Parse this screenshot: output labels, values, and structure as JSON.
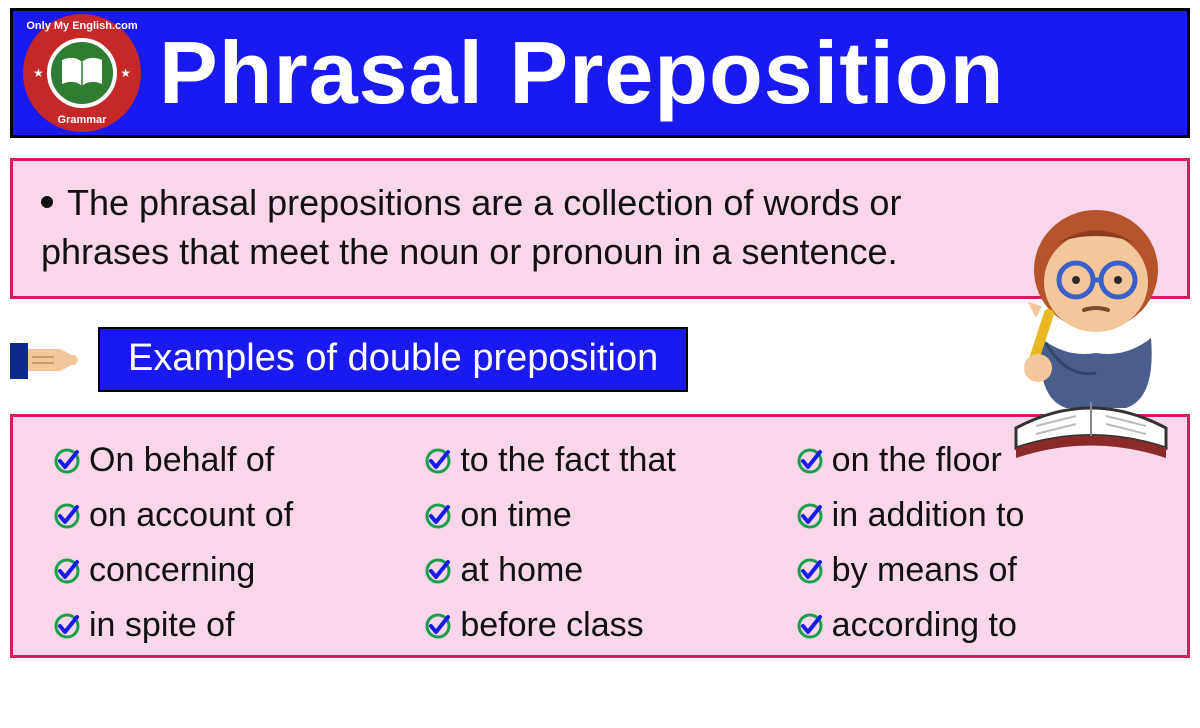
{
  "header": {
    "title": "Phrasal Preposition",
    "badge_top": "Only My English.com",
    "badge_bottom": "Grammar",
    "background_color": "#1a1af0",
    "border_color": "#000000",
    "title_color": "#ffffff",
    "title_fontsize": 88,
    "badge_outer_color": "#c62828",
    "badge_inner_color": "#2e7d32"
  },
  "definition": {
    "text": "The phrasal prepositions are a collection of words or phrases that meet the noun or pronoun in a sentence.",
    "background_color": "#f9d6ea",
    "border_color": "#d81b60",
    "text_color": "#111111",
    "fontsize": 36
  },
  "subheader": {
    "label": "Examples of double preposition",
    "background_color": "#1a1af0",
    "text_color": "#ffffff",
    "fontsize": 38
  },
  "examples": {
    "background_color": "#f9d6ea",
    "border_color": "#d81b60",
    "text_color": "#111111",
    "fontsize": 34,
    "check_circle_color": "#1a9e4b",
    "check_tick_color": "#1a1af0",
    "columns": 3,
    "items": [
      "On behalf of",
      "to the fact that",
      "on the floor",
      "on account of",
      "on time",
      "in addition to",
      "concerning",
      "at home",
      "by means of",
      "in spite of",
      "before class",
      "according to"
    ]
  },
  "illustration": {
    "hair_color": "#b5532a",
    "skin_color": "#f4c79a",
    "glasses_color": "#3a5fc8",
    "hoodie_color": "#4a5e8e",
    "book_page_color": "#ffffff",
    "book_cover_color": "#8a2a2a",
    "pencil_color": "#e8b923"
  },
  "hand_icon": {
    "cuff_color": "#0d2a8a",
    "skin_color": "#f4c79a"
  }
}
